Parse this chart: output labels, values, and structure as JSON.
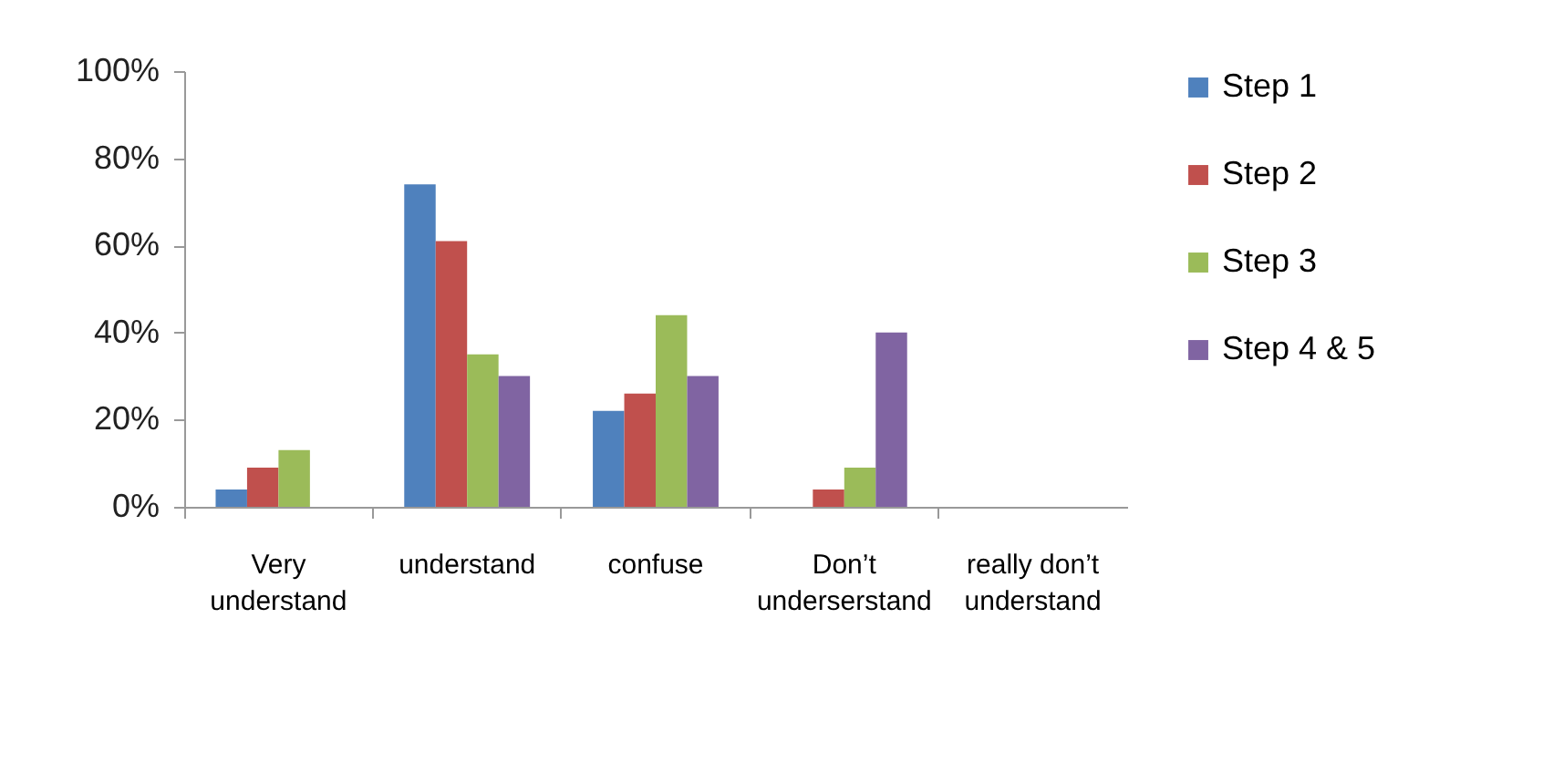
{
  "chart_data": {
    "type": "bar",
    "categories": [
      "Very understand",
      "understand",
      "confuse",
      "Don’t underserstand",
      "really don’t understand"
    ],
    "series": [
      {
        "name": "Step 1",
        "color": "#4f81bd",
        "values": [
          4,
          74,
          22,
          0,
          0
        ]
      },
      {
        "name": "Step 2",
        "color": "#c0504d",
        "values": [
          9,
          61,
          26,
          4,
          0
        ]
      },
      {
        "name": "Step 3",
        "color": "#9bbb59",
        "values": [
          13,
          35,
          44,
          9,
          0
        ]
      },
      {
        "name": "Step 4 & 5",
        "color": "#8064a2",
        "values": [
          0,
          30,
          30,
          40,
          0
        ]
      }
    ],
    "ylim": [
      0,
      100
    ],
    "yticks": [
      {
        "value": 0,
        "label": "0%"
      },
      {
        "value": 20,
        "label": "20%"
      },
      {
        "value": 40,
        "label": "40%"
      },
      {
        "value": 60,
        "label": "60%"
      },
      {
        "value": 80,
        "label": "80%"
      },
      {
        "value": 100,
        "label": "100%"
      }
    ],
    "grid": false,
    "legend": "right"
  }
}
